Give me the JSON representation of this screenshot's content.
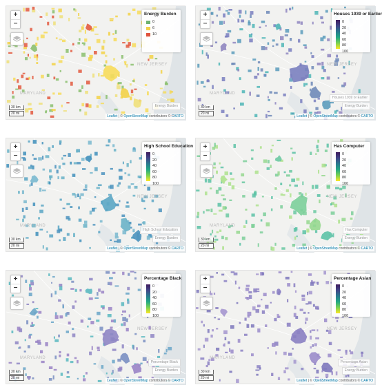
{
  "controls": {
    "zoom_in": "+",
    "zoom_out": "−"
  },
  "scale": {
    "km": "30 km",
    "mi": "20 mi"
  },
  "attribution": {
    "leaflet": "Leaflet",
    "sep": " | © ",
    "osm": "OpenStreetMap",
    "contrib": " contributors © ",
    "carto": "CARTO"
  },
  "place_labels": {
    "nj": "NEW JERSEY",
    "md": "MARYLAND"
  },
  "tick_labels": [
    "0",
    "20",
    "40",
    "60",
    "80",
    "100"
  ],
  "panels": [
    {
      "legend_title": "Energy Burden",
      "categories": [
        {
          "label": "0",
          "color": "#6fb26f"
        },
        {
          "label": "6",
          "color": "#f2d14a"
        },
        {
          "label": "10",
          "color": "#e0533c"
        }
      ],
      "layer_controls": [
        "",
        "Energy Burden"
      ],
      "palette": [
        "#f7dc5a",
        "#f3d247",
        "#efe07a",
        "#8bbf6f",
        "#e35b3f"
      ]
    },
    {
      "legend_title": "Houses 1939 or Earlier",
      "layer_controls": [
        "Houses 1939 or Earlier",
        "Energy Burden"
      ],
      "palette": [
        "#7a7fbf",
        "#6f89b8",
        "#5c9cbc",
        "#8f86c0",
        "#4fb6b6"
      ]
    },
    {
      "legend_title": "High School Education",
      "layer_controls": [
        "High School Education",
        "Energy Burden"
      ],
      "palette": [
        "#5ba6c4",
        "#6ab3c8",
        "#4c93be",
        "#7ab9cf",
        "#3f8fbb"
      ]
    },
    {
      "legend_title": "Has Computer",
      "layer_controls": [
        "Has Computer",
        "Energy Burden"
      ],
      "palette": [
        "#7ccf9a",
        "#97d88f",
        "#5cc2a6",
        "#aee28d",
        "#6bc9a2"
      ]
    },
    {
      "legend_title": "Percentage Black",
      "layer_controls": [
        "Percentage Black",
        "Energy Burden"
      ],
      "palette": [
        "#8f86c4",
        "#7a8fc2",
        "#9a84c6",
        "#6aa6c8",
        "#59b8c0"
      ]
    },
    {
      "legend_title": "Percentage Asian",
      "layer_controls": [
        "Percentage Asian",
        "Energy Burden"
      ],
      "palette": [
        "#8a7fc2",
        "#9b8cca",
        "#7e78bc",
        "#a596cf",
        "#8c82c4"
      ]
    }
  ]
}
